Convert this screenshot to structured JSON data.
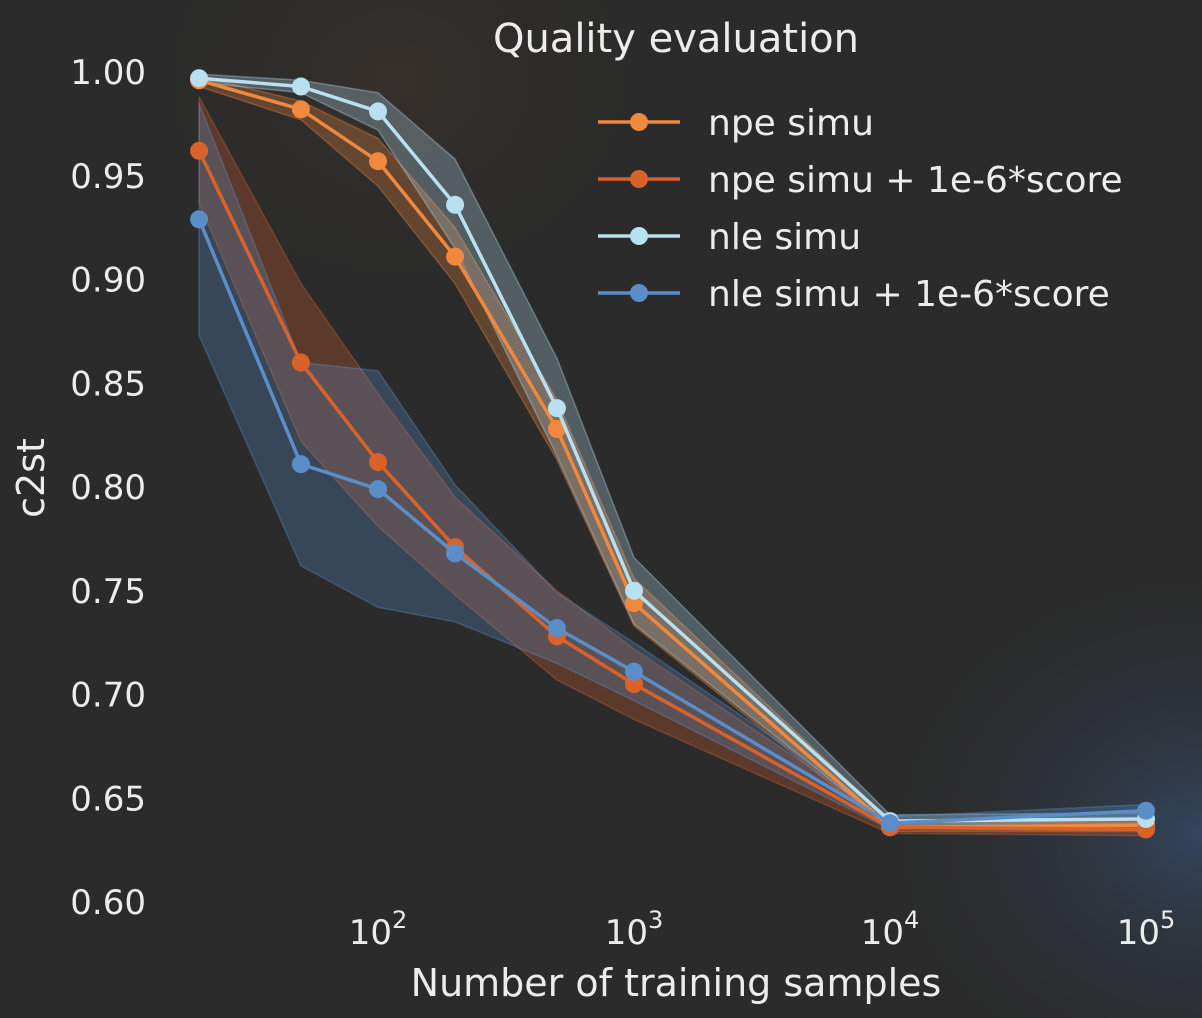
{
  "chart_data": {
    "type": "line",
    "title": "Quality evaluation",
    "xlabel": "Number of training samples",
    "ylabel": "c2st",
    "xscale": "log",
    "x": [
      20,
      50,
      100,
      200,
      500,
      1000,
      10000,
      100000
    ],
    "xticks": [
      100,
      1000,
      10000,
      100000
    ],
    "xtick_labels": [
      {
        "base": "10",
        "exp": "2"
      },
      {
        "base": "10",
        "exp": "3"
      },
      {
        "base": "10",
        "exp": "4"
      },
      {
        "base": "10",
        "exp": "5"
      }
    ],
    "ylim": [
      0.6,
      1.0
    ],
    "yticks": [
      "0.60",
      "0.65",
      "0.70",
      "0.75",
      "0.80",
      "0.85",
      "0.90",
      "0.95",
      "1.00"
    ],
    "grid": false,
    "legend_position": "top-right",
    "series": [
      {
        "name": "npe simu",
        "color": "#f0883e",
        "values": [
          0.996,
          0.982,
          0.957,
          0.911,
          0.828,
          0.744,
          0.636,
          0.637
        ],
        "lower": [
          0.993,
          0.977,
          0.945,
          0.898,
          0.813,
          0.733,
          0.634,
          0.634
        ],
        "upper": [
          0.998,
          0.986,
          0.968,
          0.925,
          0.842,
          0.756,
          0.639,
          0.64
        ]
      },
      {
        "name": "npe simu + 1e-6*score",
        "color": "#d9622b",
        "values": [
          0.962,
          0.86,
          0.812,
          0.771,
          0.728,
          0.705,
          0.636,
          0.635
        ],
        "lower": [
          0.937,
          0.822,
          0.781,
          0.748,
          0.707,
          0.688,
          0.633,
          0.632
        ],
        "upper": [
          0.988,
          0.898,
          0.845,
          0.795,
          0.75,
          0.722,
          0.639,
          0.638
        ]
      },
      {
        "name": "nle simu",
        "color": "#b8e0f0",
        "values": [
          0.997,
          0.993,
          0.981,
          0.936,
          0.838,
          0.75,
          0.639,
          0.64
        ],
        "lower": [
          0.995,
          0.99,
          0.972,
          0.915,
          0.815,
          0.734,
          0.636,
          0.637
        ],
        "upper": [
          0.999,
          0.996,
          0.99,
          0.958,
          0.862,
          0.766,
          0.642,
          0.643
        ]
      },
      {
        "name": "nle simu + 1e-6*score",
        "color": "#5b8ec8",
        "values": [
          0.929,
          0.811,
          0.799,
          0.768,
          0.732,
          0.711,
          0.638,
          0.644
        ],
        "lower": [
          0.873,
          0.762,
          0.742,
          0.735,
          0.715,
          0.697,
          0.635,
          0.641
        ],
        "upper": [
          0.985,
          0.86,
          0.856,
          0.801,
          0.749,
          0.725,
          0.641,
          0.647
        ]
      }
    ]
  }
}
